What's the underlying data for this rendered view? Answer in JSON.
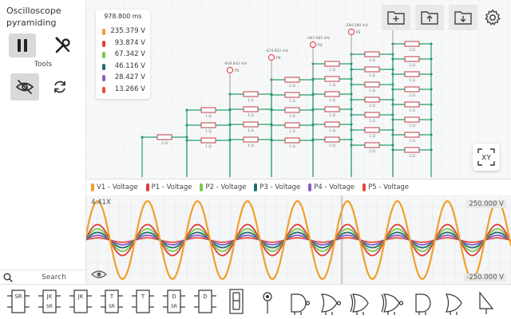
{
  "app": {
    "title": "Oscilloscope pyramiding"
  },
  "sidebar": {
    "tools_label": "Tools",
    "search_placeholder": "Search"
  },
  "voltmeter": {
    "time": "978.800 ms",
    "readings": [
      {
        "value": "235.379 V",
        "color": "#f0a028"
      },
      {
        "value": "93.874 V",
        "color": "#e03c3c"
      },
      {
        "value": "67.342 V",
        "color": "#7ac943"
      },
      {
        "value": "46.116 V",
        "color": "#1f6e6e"
      },
      {
        "value": "28.427 V",
        "color": "#8a5cc8"
      },
      {
        "value": "13.266 V",
        "color": "#e54b3c"
      }
    ]
  },
  "circuit": {
    "probe_labels": [
      {
        "id": "P5",
        "reading": "-929.842 mV"
      },
      {
        "id": "P4",
        "reading": "-474.952 mV"
      },
      {
        "id": "P3",
        "reading": "-467.405 mV"
      },
      {
        "id": "P2",
        "reading": "-284.580 mV"
      },
      {
        "id": "P1",
        "reading": ""
      }
    ],
    "resistor_text": "1 Ω"
  },
  "scope": {
    "legend": [
      {
        "label": "V1 - Voltage",
        "color": "#f0a028"
      },
      {
        "label": "P1 - Voltage",
        "color": "#e03c3c"
      },
      {
        "label": "P2 - Voltage",
        "color": "#7ac943"
      },
      {
        "label": "P3 - Voltage",
        "color": "#1f6e6e"
      },
      {
        "label": "P4 - Voltage",
        "color": "#8a5cc8"
      },
      {
        "label": "P5 - Voltage",
        "color": "#e54b3c"
      }
    ],
    "zoom": "4.41X",
    "scale_top": "250.000 V",
    "scale_bottom": "-250.000 V",
    "amplitudes": [
      235.379,
      93.874,
      67.342,
      46.116,
      28.427,
      13.266
    ],
    "cycles": 8.5,
    "y_range": [
      -250,
      250
    ]
  },
  "palette": {
    "items": [
      {
        "name": "sr-latch",
        "label": "SR"
      },
      {
        "name": "jk-flipflop-sr",
        "label": "JK"
      },
      {
        "name": "jk-flipflop",
        "label": "JK"
      },
      {
        "name": "t-flipflop-sr",
        "label": "T"
      },
      {
        "name": "t-flipflop",
        "label": "T"
      },
      {
        "name": "d-flipflop-sr",
        "label": "D"
      },
      {
        "name": "d-flipflop",
        "label": "D"
      },
      {
        "name": "seven-segment",
        "label": ""
      },
      {
        "name": "probe",
        "label": ""
      },
      {
        "name": "nand-gate",
        "label": ""
      },
      {
        "name": "nor-gate",
        "label": ""
      },
      {
        "name": "xor-gate",
        "label": ""
      },
      {
        "name": "xnor-gate",
        "label": ""
      },
      {
        "name": "and-gate",
        "label": ""
      },
      {
        "name": "or-gate",
        "label": ""
      },
      {
        "name": "not-gate",
        "label": ""
      }
    ]
  }
}
